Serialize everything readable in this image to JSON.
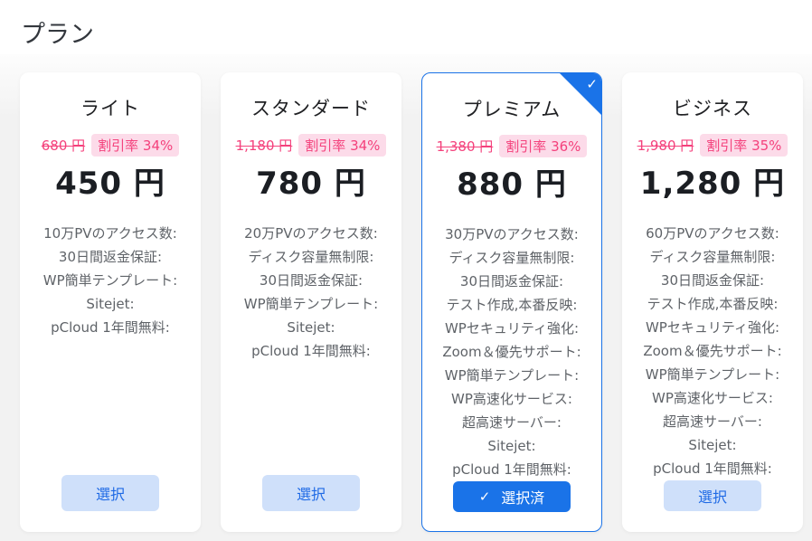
{
  "page": {
    "title": "プラン"
  },
  "icons": {
    "check": "✓"
  },
  "colors": {
    "accent_blue": "#1a73e8",
    "light_button_bg": "#cfe0fa",
    "pink": "#f4417c",
    "pink_badge_bg": "#fcdbe9",
    "feature_text": "#5f6368",
    "section_bg": "#f2f2f2"
  },
  "plans": [
    {
      "name": "ライト",
      "old_price": "680 円",
      "discount_badge": "割引率 34%",
      "price": "450 円",
      "features": [
        "10万PVのアクセス数:",
        "30日間返金保証:",
        "WP簡単テンプレート:",
        "Sitejet:",
        "pCloud 1年間無料:"
      ],
      "button_label": "選択",
      "selected": false
    },
    {
      "name": "スタンダード",
      "old_price": "1,180 円",
      "discount_badge": "割引率 34%",
      "price": "780 円",
      "features": [
        "20万PVのアクセス数:",
        "ディスク容量無制限:",
        "30日間返金保証:",
        "WP簡単テンプレート:",
        "Sitejet:",
        "pCloud 1年間無料:"
      ],
      "button_label": "選択",
      "selected": false
    },
    {
      "name": "プレミアム",
      "old_price": "1,380 円",
      "discount_badge": "割引率 36%",
      "price": "880 円",
      "features": [
        "30万PVのアクセス数:",
        "ディスク容量無制限:",
        "30日間返金保証:",
        "テスト作成,本番反映:",
        "WPセキュリティ強化:",
        "Zoom＆優先サポート:",
        "WP簡単テンプレート:",
        "WP高速化サービス:",
        "超高速サーバー:",
        "Sitejet:",
        "pCloud 1年間無料:"
      ],
      "button_label": "選択済",
      "selected": true
    },
    {
      "name": "ビジネス",
      "old_price": "1,980 円",
      "discount_badge": "割引率 35%",
      "price": "1,280 円",
      "features": [
        "60万PVのアクセス数:",
        "ディスク容量無制限:",
        "30日間返金保証:",
        "テスト作成,本番反映:",
        "WPセキュリティ強化:",
        "Zoom＆優先サポート:",
        "WP簡単テンプレート:",
        "WP高速化サービス:",
        "超高速サーバー:",
        "Sitejet:",
        "pCloud 1年間無料:"
      ],
      "button_label": "選択",
      "selected": false
    }
  ]
}
